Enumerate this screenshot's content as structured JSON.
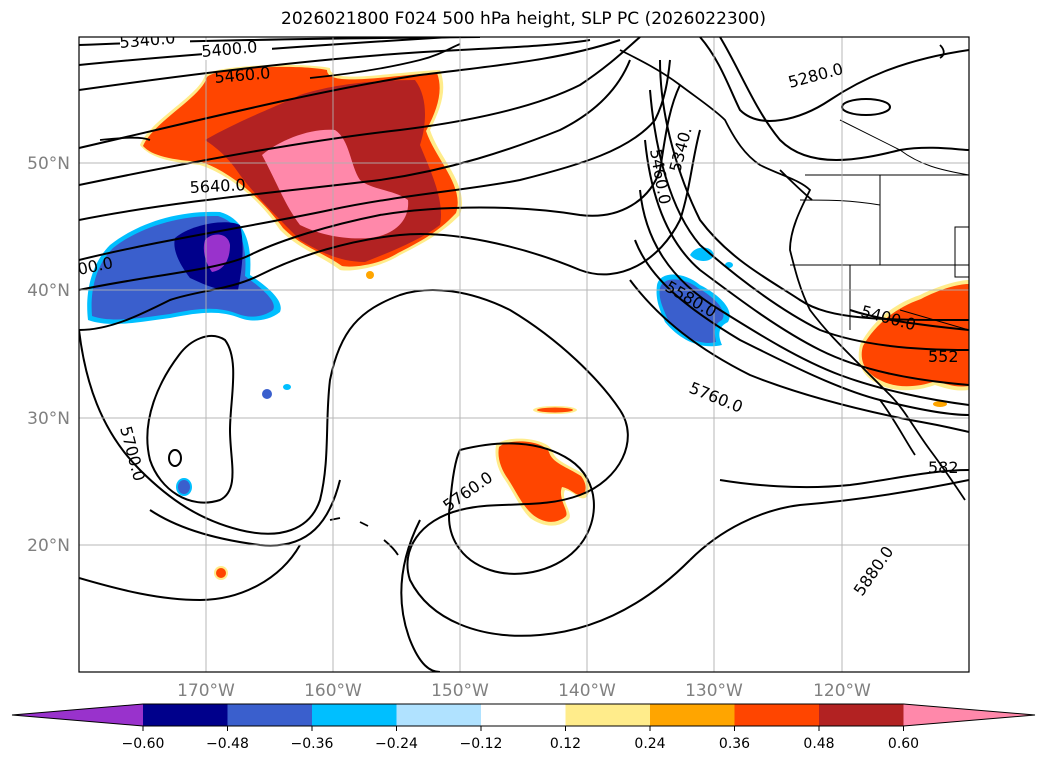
{
  "title": "2026021800 F024 500 hPa height, SLP PC (2026022300)",
  "lat_labels": [
    "50°N",
    "40°N",
    "30°N",
    "20°N"
  ],
  "lon_labels": [
    "170°W",
    "160°W",
    "150°W",
    "140°W",
    "130°W",
    "120°W"
  ],
  "contour_labels": [
    "5340.0",
    "5400.0",
    "5460.0",
    "5640.0",
    "00.0",
    "5700.0",
    "5760.0",
    "5760.0",
    "5580.0",
    "5460.0",
    "5340.",
    "5280.0",
    "5400.0",
    "552",
    "582",
    "5880.0"
  ],
  "colorbar": {
    "colors": [
      "#9932cc",
      "#00008b",
      "#3a5fcd",
      "#00bfff",
      "#b0e2ff",
      "#ffffff",
      "#ffec8b",
      "#ffa500",
      "#ff4500",
      "#b22222",
      "#ff88aa"
    ],
    "tick_labels": [
      "−0.60",
      "−0.48",
      "−0.36",
      "−0.24",
      "−0.12",
      "0.12",
      "0.24",
      "0.36",
      "0.48",
      "0.60"
    ]
  }
}
